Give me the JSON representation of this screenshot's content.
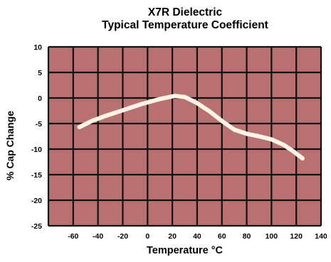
{
  "chart_data": {
    "type": "line",
    "title": "X7R Dielectric",
    "subtitle": "Typical Temperature Coefficient",
    "xlabel": "Temperature °C",
    "ylabel": "% Cap Change",
    "xlim": [
      -80,
      140
    ],
    "ylim": [
      -25,
      10
    ],
    "xticks": [
      -60,
      -40,
      -20,
      0,
      20,
      40,
      60,
      80,
      100,
      120,
      140
    ],
    "yticks": [
      10,
      5,
      0,
      -5,
      -10,
      -15,
      -20,
      -25
    ],
    "grid": true,
    "series": [
      {
        "x": [
          -55,
          -45,
          -35,
          -20,
          -5,
          10,
          22,
          30,
          40,
          50,
          60,
          70,
          80,
          90,
          100,
          110,
          118,
          125
        ],
        "y": [
          -5.7,
          -4.5,
          -3.6,
          -2.4,
          -1.2,
          -0.2,
          0.4,
          0.2,
          -1.0,
          -2.6,
          -4.5,
          -6.2,
          -7.0,
          -7.5,
          -8.1,
          -9.2,
          -10.5,
          -11.8
        ]
      }
    ],
    "colors": {
      "plot_bg": "#b87070",
      "grid": "#111111",
      "line": "#fff4e6"
    }
  }
}
